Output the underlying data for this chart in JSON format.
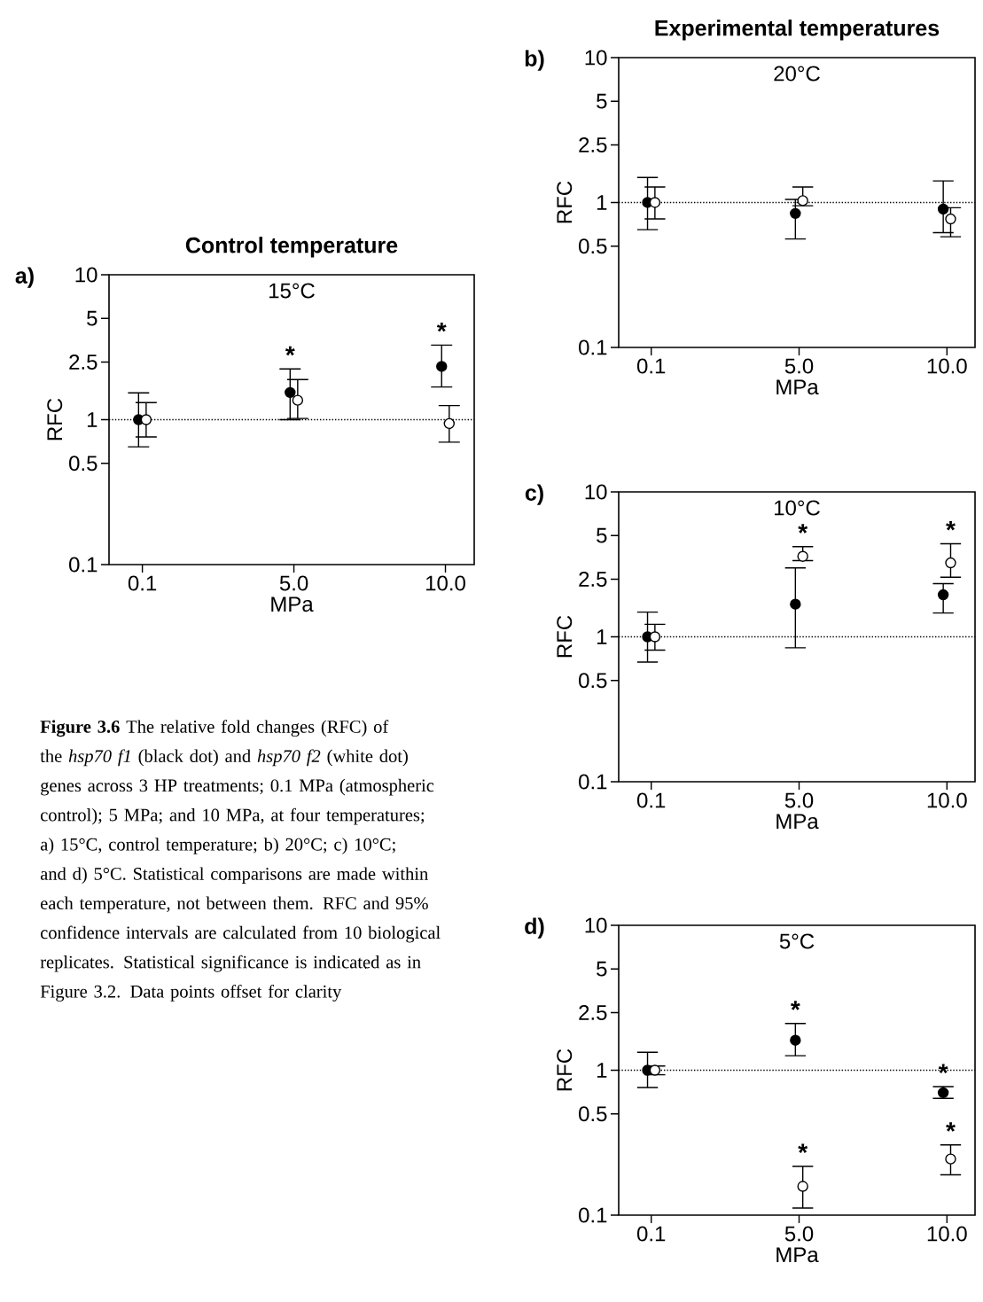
{
  "chart_data": [
    {
      "type": "scatter",
      "title": "Control temperature",
      "categories": [
        "0.1",
        "5.0",
        "10.0"
      ],
      "xlabel": "MPa",
      "ylabel": "RFC",
      "log": true,
      "ylim": [
        0.1,
        10
      ],
      "yticks": [
        0.1,
        0.5,
        1,
        2.5,
        5,
        10
      ],
      "marker": "circle",
      "series": [
        {
          "color": "#000000",
          "values": [
            1.0,
            1.54,
            2.33
          ],
          "errors": [
            [
              0.65,
              1.53
            ],
            [
              1.0,
              2.24
            ],
            [
              1.68,
              3.27
            ]
          ]
        },
        {
          "color": "#ffffff",
          "values": [
            1.0,
            1.36,
            0.94
          ],
          "errors": [
            [
              0.76,
              1.31
            ],
            [
              1.02,
              1.89
            ],
            [
              0.7,
              1.25
            ]
          ]
        }
      ],
      "ref_lines": [
        {
          "axis": "y",
          "value": 1,
          "line_style": "dotted"
        }
      ],
      "annotations": [
        "a)",
        "15°C",
        "**Figure 3.6** The relative fold changes (RFC) of the *hsp70 f1* (black dot) and *hsp70 f2* (white dot) genes across 3 HP treatments; 0.1 MPa (atmospheric control); 5 MPa; and 10 MPa, at four temperatures; a) 15°C, control temperature; b) 20°C; c) 10°C; and d) 5°C. Statistical comparisons are made within each temperature, not between them. RFC and 95% confidence intervals are calculated from 10 biological replicates. Statistical significance is indicated as in Figure 3.2. Data points offset for clarity",
        {
          "text": "*",
          "x": "5.0",
          "y": 1.54
        },
        {
          "text": "*",
          "x": "10.0",
          "y": 2.33
        }
      ]
    },
    {
      "type": "scatter",
      "title": "Experimental temperatures",
      "categories": [
        "0.1",
        "5.0",
        "10.0"
      ],
      "xlabel": "MPa",
      "ylabel": "RFC",
      "log": true,
      "ylim": [
        0.1,
        10
      ],
      "yticks": [
        0.1,
        0.5,
        1,
        2.5,
        5,
        10
      ],
      "marker": "circle",
      "series": [
        {
          "color": "#000000",
          "values": [
            1.0,
            0.84,
            0.9
          ],
          "errors": [
            [
              0.65,
              1.49
            ],
            [
              0.56,
              1.05
            ],
            [
              0.62,
              1.41
            ]
          ]
        },
        {
          "color": "#ffffff",
          "values": [
            1.0,
            1.03,
            0.77
          ],
          "errors": [
            [
              0.77,
              1.28
            ],
            [
              0.95,
              1.28
            ],
            [
              0.58,
              0.92
            ]
          ]
        }
      ],
      "ref_lines": [
        {
          "axis": "y",
          "value": 1,
          "line_style": "dotted"
        }
      ],
      "annotations": [
        "b)",
        "20°C"
      ]
    },
    {
      "type": "scatter",
      "categories": [
        "0.1",
        "5.0",
        "10.0"
      ],
      "xlabel": "MPa",
      "ylabel": "RFC",
      "log": true,
      "ylim": [
        0.1,
        10
      ],
      "yticks": [
        0.1,
        0.5,
        1,
        2.5,
        5,
        10
      ],
      "marker": "circle",
      "series": [
        {
          "color": "#000000",
          "values": [
            1.0,
            1.68,
            1.95
          ],
          "errors": [
            [
              0.67,
              1.48
            ],
            [
              0.84,
              2.99
            ],
            [
              1.46,
              2.33
            ]
          ]
        },
        {
          "color": "#ffffff",
          "values": [
            1.0,
            3.59,
            3.24
          ],
          "errors": [
            [
              0.81,
              1.22
            ],
            [
              3.36,
              4.19
            ],
            [
              2.58,
              4.39
            ]
          ]
        }
      ],
      "ref_lines": [
        {
          "axis": "y",
          "value": 1,
          "line_style": "dotted"
        }
      ],
      "annotations": [
        "c)",
        "10°C",
        {
          "text": "*",
          "x": "5.0",
          "y": 3.59
        },
        {
          "text": "*",
          "x": "10.0",
          "y": 3.24
        }
      ]
    },
    {
      "type": "scatter",
      "categories": [
        "0.1",
        "5.0",
        "10.0"
      ],
      "xlabel": "MPa",
      "ylabel": "RFC",
      "log": true,
      "ylim": [
        0.1,
        10
      ],
      "yticks": [
        0.1,
        0.5,
        1,
        2.5,
        5,
        10
      ],
      "marker": "circle",
      "series": [
        {
          "color": "#000000",
          "values": [
            1.0,
            1.61,
            0.7
          ],
          "errors": [
            [
              0.76,
              1.33
            ],
            [
              1.26,
              2.1
            ],
            [
              0.64,
              0.77
            ]
          ]
        },
        {
          "color": "#ffffff",
          "values": [
            1.0,
            0.158,
            0.244
          ],
          "errors": [
            [
              0.93,
              1.07
            ],
            [
              0.112,
              0.217
            ],
            [
              0.19,
              0.305
            ]
          ]
        }
      ],
      "ref_lines": [
        {
          "axis": "y",
          "value": 1,
          "line_style": "dotted"
        }
      ],
      "annotations": [
        "d)",
        "5°C",
        {
          "text": "*",
          "x": "5.0",
          "y": 1.61
        },
        {
          "text": "*",
          "x": "5.0",
          "y": 0.158
        },
        {
          "text": "*",
          "x": "10.0",
          "y": 0.7
        },
        {
          "text": "*",
          "x": "10.0",
          "y": 0.244
        }
      ]
    }
  ]
}
